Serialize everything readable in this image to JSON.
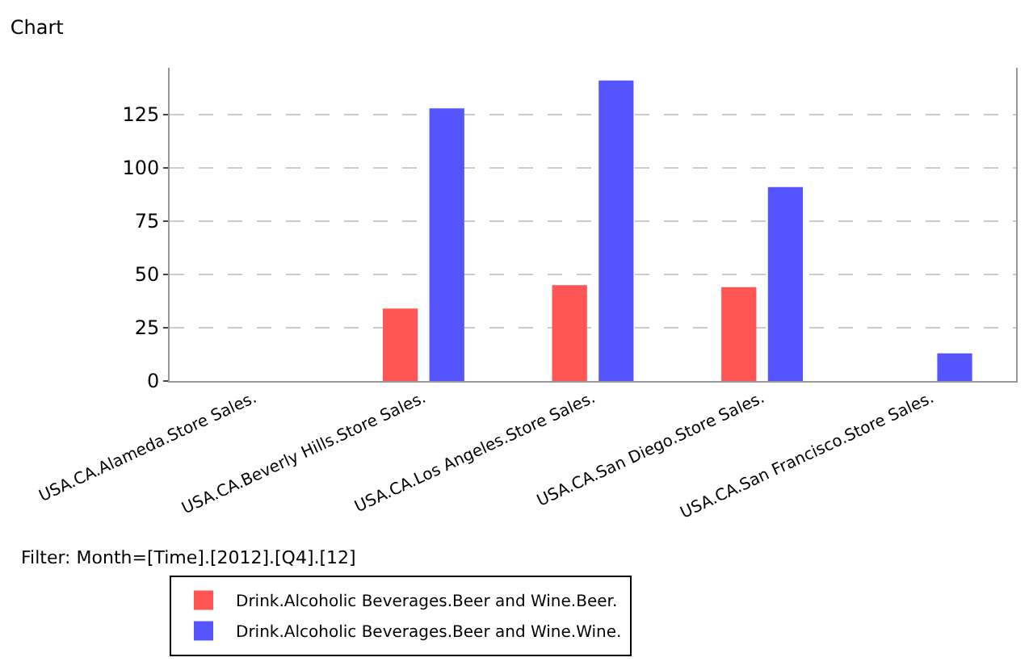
{
  "chart_data": {
    "type": "bar",
    "title": "Chart",
    "categories": [
      "USA.CA.Alameda.Store Sales.",
      "USA.CA.Beverly Hills.Store Sales.",
      "USA.CA.Los Angeles.Store Sales.",
      "USA.CA.San Diego.Store Sales.",
      "USA.CA.San Francisco.Store Sales."
    ],
    "series": [
      {
        "name": "Drink.Alcoholic Beverages.Beer and Wine.Beer.",
        "color": "#ff5555",
        "values": [
          null,
          34,
          45,
          44,
          null
        ]
      },
      {
        "name": "Drink.Alcoholic Beverages.Beer and Wine.Wine.",
        "color": "#5555ff",
        "values": [
          null,
          128,
          141,
          91,
          13
        ]
      }
    ],
    "ylim": [
      0,
      147
    ],
    "yticks": [
      0,
      25,
      50,
      75,
      100,
      125
    ],
    "grid": "y",
    "legend": "bottom",
    "annotations": [
      "Filter: Month=[Time].[2012].[Q4].[12]"
    ]
  }
}
